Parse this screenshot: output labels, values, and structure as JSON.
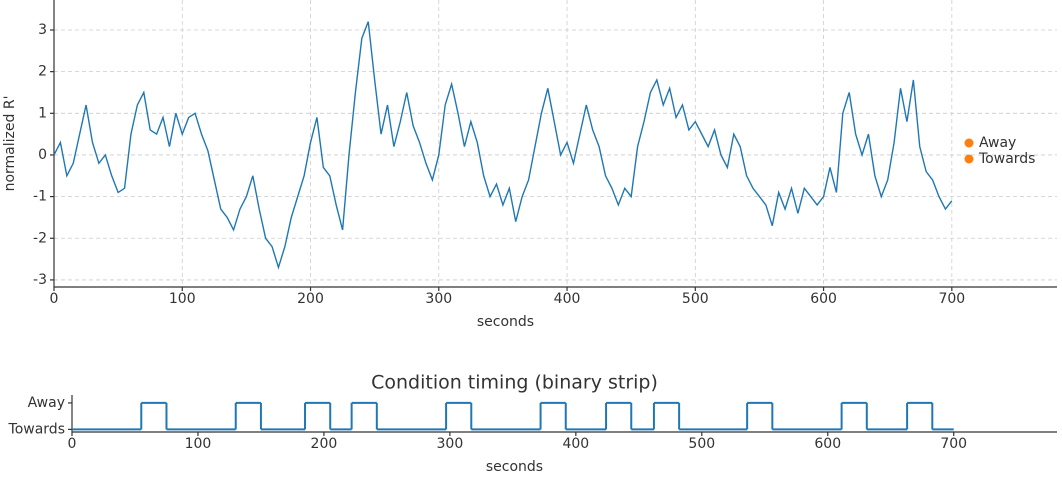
{
  "chart_data": [
    {
      "type": "line",
      "xlabel": "seconds",
      "ylabel": "normalized R'",
      "color": "#1f77b4",
      "x": [
        0,
        5,
        10,
        15,
        20,
        25,
        30,
        35,
        40,
        45,
        50,
        55,
        60,
        65,
        70,
        75,
        80,
        85,
        90,
        95,
        100,
        105,
        110,
        115,
        120,
        125,
        130,
        135,
        140,
        145,
        150,
        155,
        160,
        165,
        170,
        175,
        180,
        185,
        190,
        195,
        200,
        205,
        210,
        215,
        220,
        225,
        230,
        235,
        240,
        245,
        250,
        255,
        260,
        265,
        270,
        275,
        280,
        285,
        290,
        295,
        300,
        305,
        310,
        315,
        320,
        325,
        330,
        335,
        340,
        345,
        350,
        355,
        360,
        365,
        370,
        375,
        380,
        385,
        390,
        395,
        400,
        405,
        410,
        415,
        420,
        425,
        430,
        435,
        440,
        445,
        450,
        455,
        460,
        465,
        470,
        475,
        480,
        485,
        490,
        495,
        500,
        505,
        510,
        515,
        520,
        525,
        530,
        535,
        540,
        545,
        550,
        555,
        560,
        565,
        570,
        575,
        580,
        585,
        590,
        595,
        600,
        605,
        610,
        615,
        620,
        625,
        630,
        635,
        640,
        645,
        650,
        655,
        660,
        665,
        670,
        675,
        680,
        685,
        690,
        695,
        700
      ],
      "values": [
        0,
        0.3,
        -0.5,
        -0.2,
        0.5,
        1.2,
        0.3,
        -0.2,
        0,
        -0.5,
        -0.9,
        -0.8,
        0.5,
        1.2,
        1.5,
        0.6,
        0.5,
        0.9,
        0.2,
        1,
        0.5,
        0.9,
        1,
        0.5,
        0.1,
        -0.6,
        -1.3,
        -1.5,
        -1.8,
        -1.3,
        -1,
        -0.5,
        -1.3,
        -2,
        -2.2,
        -2.7,
        -2.2,
        -1.5,
        -1,
        -0.5,
        0.3,
        0.9,
        -0.3,
        -0.5,
        -1.2,
        -1.8,
        0,
        1.5,
        2.8,
        3.2,
        1.8,
        0.5,
        1.2,
        0.2,
        0.8,
        1.5,
        0.7,
        0.3,
        -0.2,
        -0.6,
        0,
        1.2,
        1.7,
        1,
        0.2,
        0.8,
        0.3,
        -0.5,
        -1,
        -0.7,
        -1.2,
        -0.8,
        -1.6,
        -1,
        -0.6,
        0.2,
        1,
        1.6,
        0.8,
        0,
        0.3,
        -0.2,
        0.5,
        1.2,
        0.6,
        0.2,
        -0.5,
        -0.8,
        -1.2,
        -0.8,
        -1,
        0.2,
        0.8,
        1.5,
        1.8,
        1.2,
        1.6,
        0.9,
        1.2,
        0.6,
        0.8,
        0.5,
        0.2,
        0.6,
        0,
        -0.3,
        0.5,
        0.2,
        -0.5,
        -0.8,
        -1,
        -1.2,
        -1.7,
        -0.9,
        -1.3,
        -0.8,
        -1.4,
        -0.8,
        -1,
        -1.2,
        -1,
        -0.3,
        -0.9,
        1,
        1.5,
        0.5,
        0,
        0.5,
        -0.5,
        -1,
        -0.6,
        0.3,
        1.6,
        0.8,
        1.8,
        0.2,
        -0.4,
        -0.6,
        -1,
        -1.3,
        -1.1
      ],
      "xlim": [
        0,
        782
      ],
      "ylim": [
        -3.17,
        3.72
      ],
      "xticks": [
        0,
        100,
        200,
        300,
        400,
        500,
        600,
        700
      ],
      "yticks": [
        -3,
        -2,
        -1,
        0,
        1,
        2,
        3
      ],
      "grid": true,
      "legend": [
        {
          "name": "Away",
          "color": "#ff7f0e"
        },
        {
          "name": "Towards",
          "color": "#ff7f0e"
        }
      ],
      "legend_position": "right"
    },
    {
      "type": "step",
      "title": "Condition timing (binary strip)",
      "xlabel": "seconds",
      "color": "#1f77b4",
      "x": [
        0,
        55,
        75,
        130,
        150,
        185,
        205,
        222,
        242,
        297,
        317,
        372,
        392,
        424,
        444,
        462,
        482,
        536,
        556,
        611,
        631,
        663,
        683,
        700
      ],
      "values": [
        0,
        1,
        0,
        1,
        0,
        1,
        0,
        1,
        0,
        1,
        0,
        1,
        0,
        1,
        0,
        1,
        0,
        1,
        0,
        1,
        0,
        1,
        0,
        0
      ],
      "xlim": [
        0,
        782
      ],
      "ylim": [
        -0.1,
        1.3
      ],
      "xticks": [
        0,
        100,
        200,
        300,
        400,
        500,
        600,
        700
      ],
      "yticks": [
        {
          "value": 0,
          "label": "Towards"
        },
        {
          "value": 1,
          "label": "Away"
        }
      ],
      "grid": false
    }
  ]
}
